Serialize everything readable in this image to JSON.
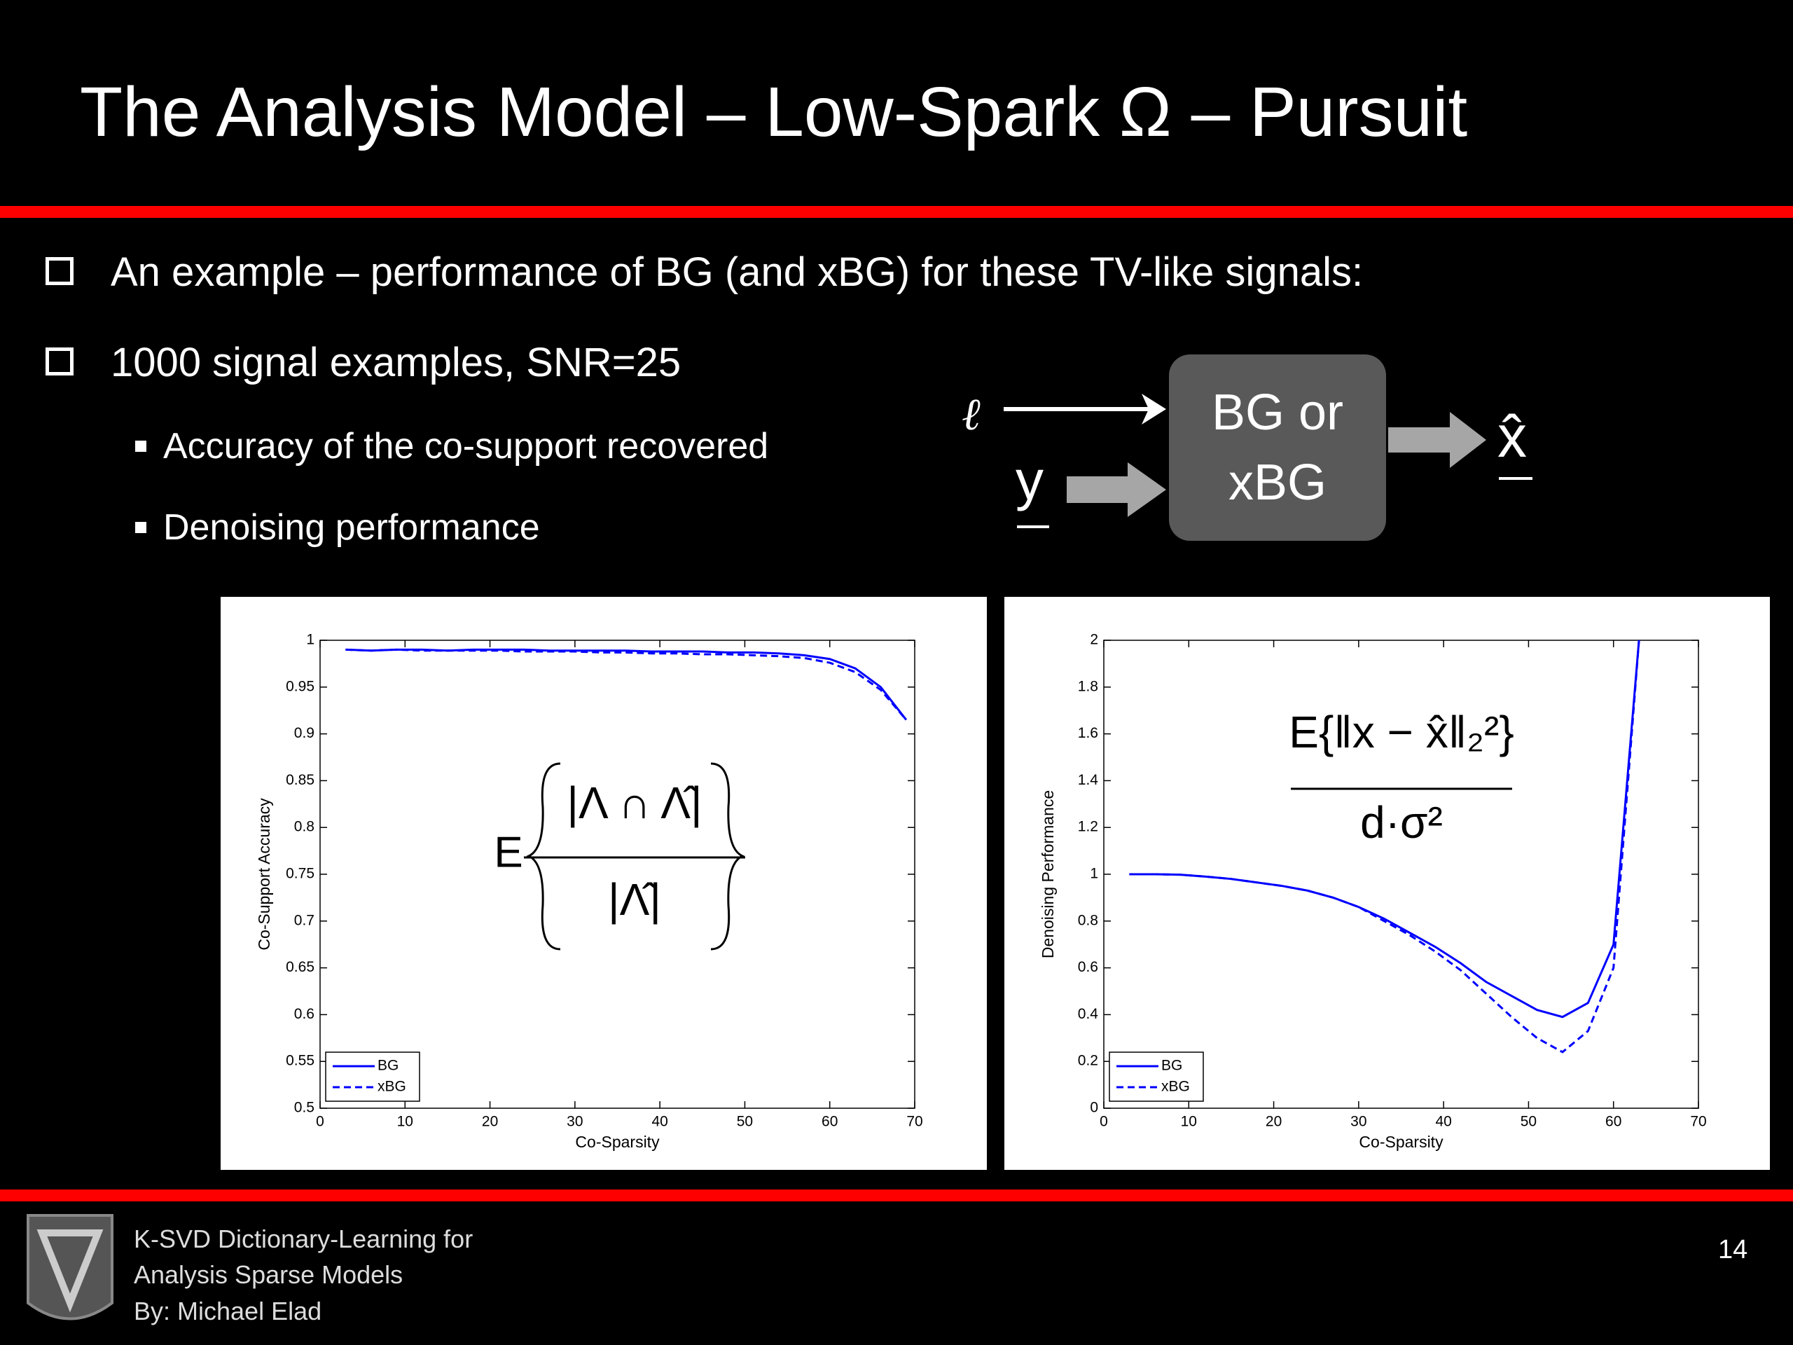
{
  "slide": {
    "title": "The Analysis Model – Low-Spark Ω – Pursuit",
    "bullets": [
      "An example – performance of BG (and xBG) for these TV-like signals:",
      "1000 signal examples, SNR=25"
    ],
    "sub_bullets": [
      "Accuracy of the co-support recovered",
      "Denoising performance"
    ],
    "diagram": {
      "input_l": "ℓ",
      "input_y": "y",
      "block": "BG or xBG",
      "output": "x̂"
    },
    "footer": {
      "lines": [
        "K-SVD Dictionary-Learning for",
        "Analysis Sparse Models",
        "By: Michael Elad"
      ],
      "page": 14
    }
  },
  "chart_data": [
    {
      "type": "line",
      "xlabel": "Co-Sparsity",
      "ylabel": "Co-Support Accuracy",
      "annotation": {
        "prefix": "E",
        "numerator": "|Λ ∩ Λ̂|",
        "denominator": "|Λ̂|"
      },
      "x": [
        3,
        6,
        9,
        12,
        15,
        18,
        21,
        24,
        27,
        30,
        33,
        36,
        39,
        42,
        45,
        48,
        51,
        54,
        57,
        60,
        63,
        66,
        69
      ],
      "series": [
        {
          "name": "BG",
          "color": "#0000ff",
          "linestyle": "solid",
          "values": [
            0.99,
            0.989,
            0.99,
            0.99,
            0.989,
            0.99,
            0.99,
            0.99,
            0.989,
            0.989,
            0.989,
            0.989,
            0.988,
            0.988,
            0.988,
            0.987,
            0.987,
            0.986,
            0.984,
            0.98,
            0.97,
            0.95,
            0.915
          ]
        },
        {
          "name": "xBG",
          "color": "#0000ff",
          "linestyle": "dashed",
          "values": [
            0.99,
            0.989,
            0.99,
            0.989,
            0.989,
            0.989,
            0.989,
            0.988,
            0.988,
            0.988,
            0.987,
            0.987,
            0.986,
            0.986,
            0.985,
            0.985,
            0.984,
            0.983,
            0.981,
            0.976,
            0.966,
            0.947,
            0.915
          ]
        }
      ],
      "xlim": [
        0,
        70
      ],
      "xticks": [
        0,
        10,
        20,
        30,
        40,
        50,
        60,
        70
      ],
      "ylim": [
        0.5,
        1
      ],
      "yticks": [
        0.5,
        0.55,
        0.6,
        0.65,
        0.7,
        0.75,
        0.8,
        0.85,
        0.9,
        0.95,
        1
      ],
      "legend": "lower left"
    },
    {
      "type": "line",
      "xlabel": "Co-Sparsity",
      "ylabel": "Denoising Performance",
      "annotation": {
        "numerator": "E{‖x − x̂‖₂²}",
        "denominator": "d·σ²"
      },
      "x": [
        3,
        6,
        9,
        12,
        15,
        18,
        21,
        24,
        27,
        30,
        33,
        36,
        39,
        42,
        45,
        48,
        51,
        54,
        57,
        60,
        63
      ],
      "series": [
        {
          "name": "BG",
          "color": "#0000ff",
          "linestyle": "solid",
          "values": [
            1.0,
            1.0,
            0.998,
            0.99,
            0.98,
            0.965,
            0.95,
            0.93,
            0.9,
            0.86,
            0.81,
            0.75,
            0.69,
            0.62,
            0.54,
            0.48,
            0.42,
            0.39,
            0.45,
            0.7,
            2.0
          ]
        },
        {
          "name": "xBG",
          "color": "#0000ff",
          "linestyle": "dashed",
          "values": [
            1.0,
            1.0,
            0.998,
            0.99,
            0.98,
            0.965,
            0.95,
            0.93,
            0.9,
            0.86,
            0.8,
            0.74,
            0.67,
            0.59,
            0.49,
            0.39,
            0.3,
            0.24,
            0.33,
            0.6,
            2.0
          ]
        }
      ],
      "xlim": [
        0,
        70
      ],
      "xticks": [
        0,
        10,
        20,
        30,
        40,
        50,
        60,
        70
      ],
      "ylim": [
        0,
        2
      ],
      "yticks": [
        0,
        0.2,
        0.4,
        0.6,
        0.8,
        1,
        1.2,
        1.4,
        1.6,
        1.8,
        2
      ],
      "legend": "lower left"
    }
  ]
}
